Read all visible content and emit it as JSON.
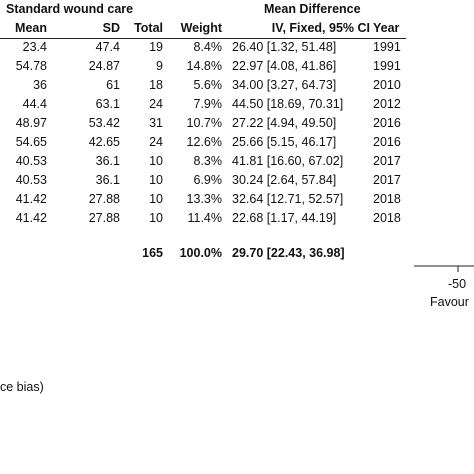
{
  "chart_data": {
    "type": "table",
    "group_header": "Standard wound care",
    "effect_header": "Mean Difference",
    "columns": {
      "mean": "Mean",
      "sd": "SD",
      "total": "Total",
      "weight": "Weight",
      "ci": "IV, Fixed, 95% CI",
      "year": "Year"
    },
    "rows": [
      {
        "mean": "23.4",
        "sd": "47.4",
        "total": "19",
        "weight": "8.4%",
        "ci": "26.40 [1.32, 51.48]",
        "year": "1991"
      },
      {
        "mean": "54.78",
        "sd": "24.87",
        "total": "9",
        "weight": "14.8%",
        "ci": "22.97 [4.08, 41.86]",
        "year": "1991"
      },
      {
        "mean": "36",
        "sd": "61",
        "total": "18",
        "weight": "5.6%",
        "ci": "34.00 [3.27, 64.73]",
        "year": "2010"
      },
      {
        "mean": "44.4",
        "sd": "63.1",
        "total": "24",
        "weight": "7.9%",
        "ci": "44.50 [18.69, 70.31]",
        "year": "2012"
      },
      {
        "mean": "48.97",
        "sd": "53.42",
        "total": "31",
        "weight": "10.7%",
        "ci": "27.22 [4.94, 49.50]",
        "year": "2016"
      },
      {
        "mean": "54.65",
        "sd": "42.65",
        "total": "24",
        "weight": "12.6%",
        "ci": "25.66 [5.15, 46.17]",
        "year": "2016"
      },
      {
        "mean": "40.53",
        "sd": "36.1",
        "total": "10",
        "weight": "8.3%",
        "ci": "41.81 [16.60, 67.02]",
        "year": "2017"
      },
      {
        "mean": "40.53",
        "sd": "36.1",
        "total": "10",
        "weight": "6.9%",
        "ci": "30.24 [2.64, 57.84]",
        "year": "2017"
      },
      {
        "mean": "41.42",
        "sd": "27.88",
        "total": "10",
        "weight": "13.3%",
        "ci": "32.64 [12.71, 52.57]",
        "year": "2018"
      },
      {
        "mean": "41.42",
        "sd": "27.88",
        "total": "10",
        "weight": "11.4%",
        "ci": "22.68 [1.17, 44.19]",
        "year": "2018"
      }
    ],
    "total_row": {
      "total": "165",
      "weight": "100.0%",
      "ci": "29.70 [22.43, 36.98]"
    },
    "axis": {
      "tick_label": "-50",
      "favours_label": "Favour"
    },
    "footnote": "ce bias)"
  }
}
